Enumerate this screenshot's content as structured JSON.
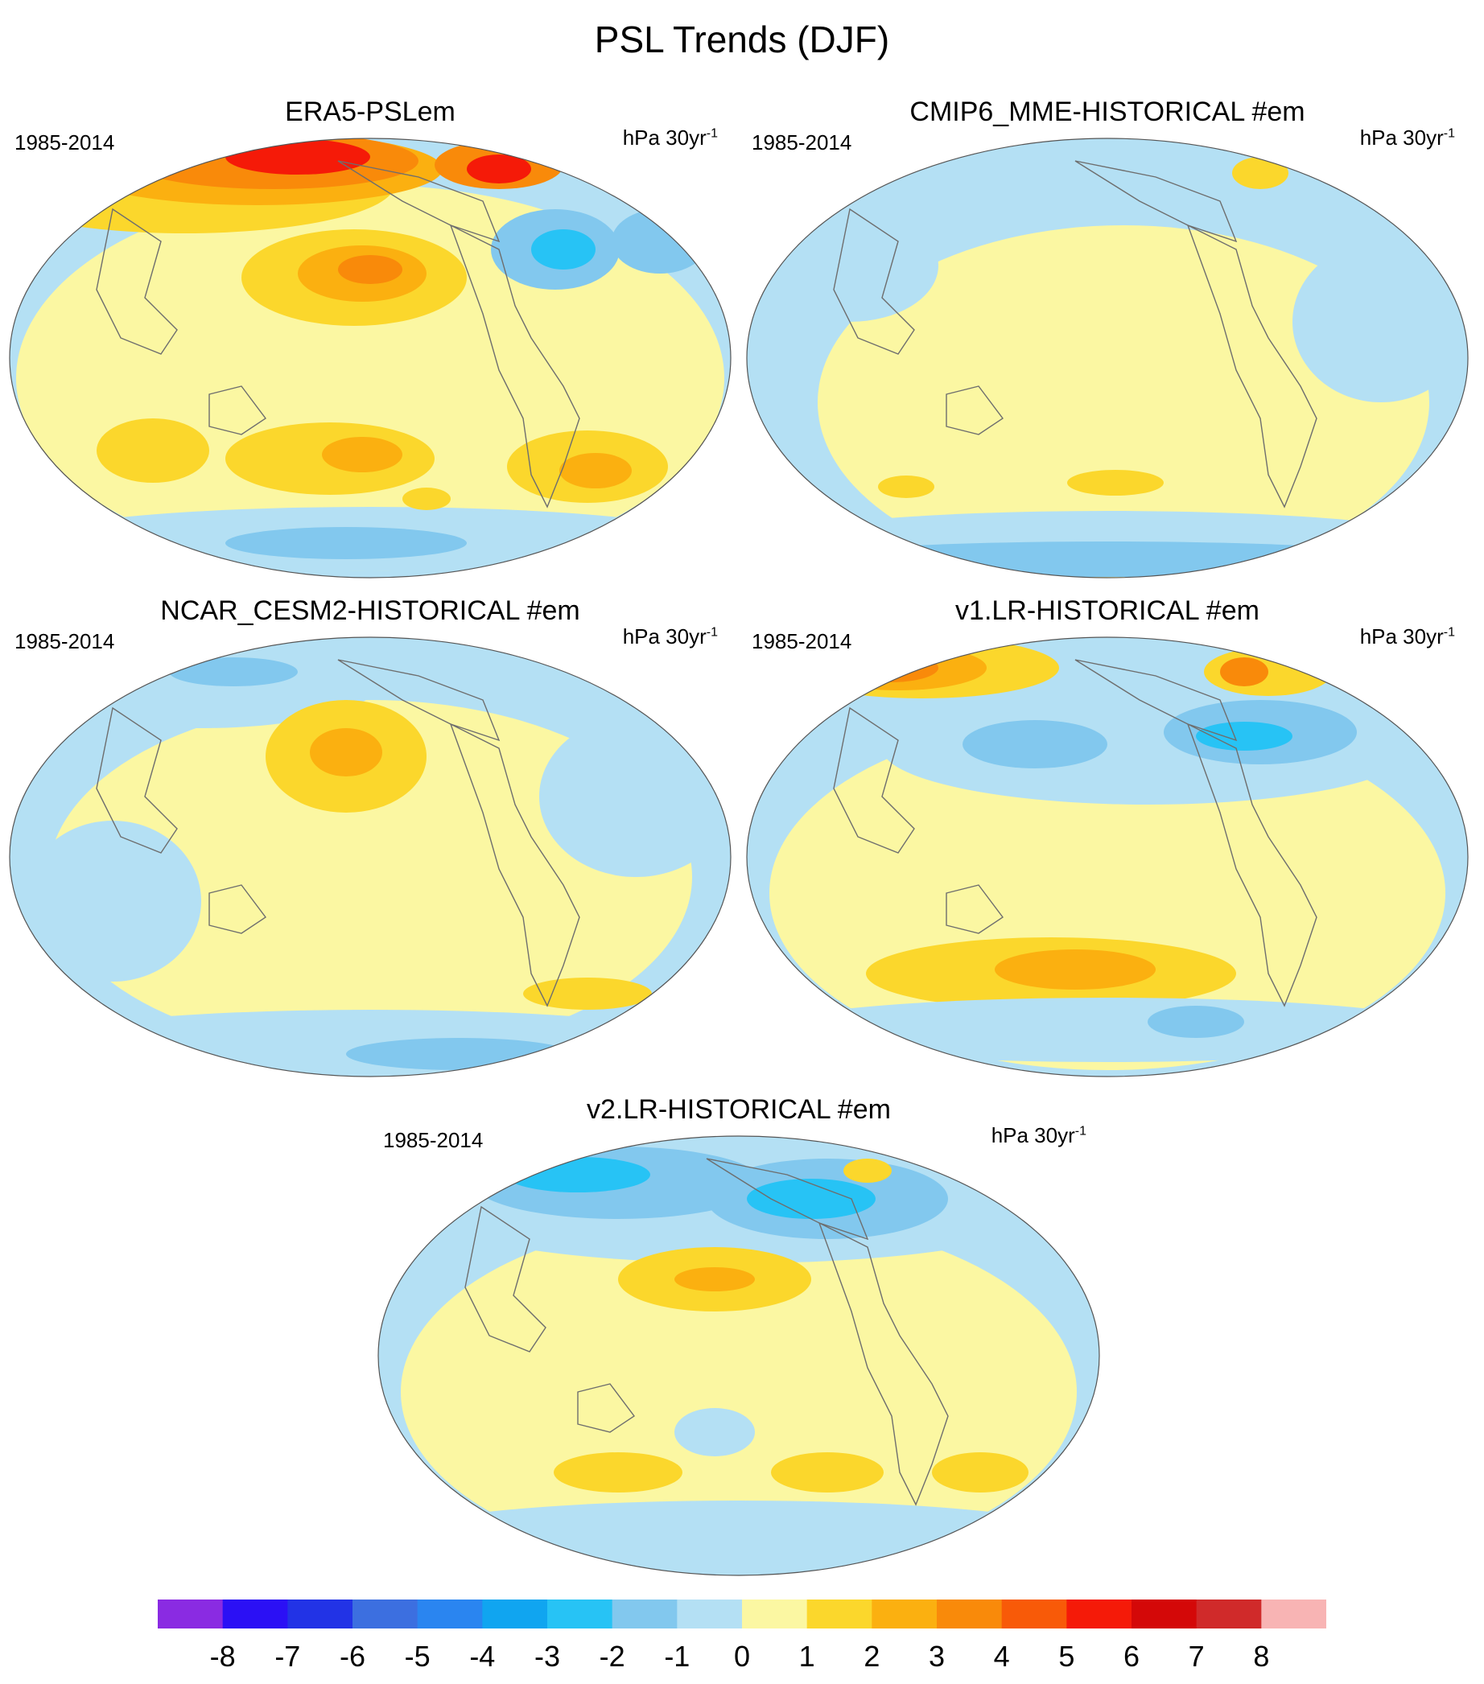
{
  "title": "PSL Trends (DJF)",
  "panels": [
    {
      "title": "ERA5-PSLem",
      "period": "1985-2014",
      "units_base": "hPa 30yr",
      "units_exp": "-1"
    },
    {
      "title": "CMIP6_MME-HISTORICAL  #em",
      "period": "1985-2014",
      "units_base": "hPa 30yr",
      "units_exp": "-1"
    },
    {
      "title": "NCAR_CESM2-HISTORICAL  #em",
      "period": "1985-2014",
      "units_base": "hPa 30yr",
      "units_exp": "-1"
    },
    {
      "title": "v1.LR-HISTORICAL  #em",
      "period": "1985-2014",
      "units_base": "hPa 30yr",
      "units_exp": "-1"
    },
    {
      "title": "v2.LR-HISTORICAL  #em",
      "period": "1985-2014",
      "units_base": "hPa 30yr",
      "units_exp": "-1"
    }
  ],
  "colorbar": {
    "labels": [
      "-8",
      "-7",
      "-6",
      "-5",
      "-4",
      "-3",
      "-2",
      "-1",
      "0",
      "1",
      "2",
      "3",
      "4",
      "5",
      "6",
      "7",
      "8"
    ],
    "colors": [
      "#8a2be2",
      "#2b10f5",
      "#2233e6",
      "#3c6fe0",
      "#2a85f0",
      "#10a5f0",
      "#27c3f5",
      "#82c8ee",
      "#b4e0f4",
      "#fbf7a2",
      "#fbd72c",
      "#fbb010",
      "#f98a0a",
      "#f85a08",
      "#f51a08",
      "#d40808",
      "#d02a2a",
      "#f8b4b4"
    ]
  },
  "map": {
    "ocean_base": "#b4e0f4",
    "land_outline": "#6e6e6e"
  }
}
